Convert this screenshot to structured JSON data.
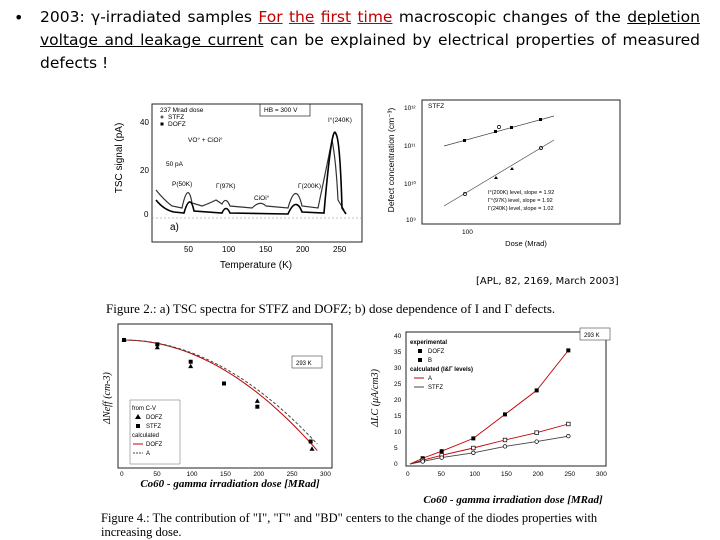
{
  "bullet": {
    "symbol": "•",
    "prefix": "2003: γ-irradiated samples",
    "red_words": [
      "For",
      "the",
      "first",
      "time"
    ],
    "after_red": "macroscopic changes of the",
    "underlined": "depletion voltage and leakage current",
    "rest": "can be explained by electrical properties of measured defects !"
  },
  "citation": "[APL, 82, 2169, March 2003]",
  "figure2_caption": "Figure 2.: a) TSC spectra for STFZ and DOFZ; b) dose dependence of I and Γ defects.",
  "figure4_caption": "Figure 4.: The contribution of \"I\", \"Γ\" and \"BD\" centers to the change of the diodes properties with increasing dose.",
  "tsc_plot": {
    "ylabel": "TSC signal (pA)",
    "xlabel": "Temperature (K)",
    "yticks": [
      "40",
      "20",
      "0"
    ],
    "xticks": [
      "50",
      "100",
      "150",
      "200",
      "250"
    ],
    "legend_title": "237 Mrad dose",
    "legend": [
      "STFZ",
      "DOFZ"
    ],
    "box_label": "HB = 300 V",
    "annotations": [
      "I°(240K)",
      "VO° + CiOi°",
      "50 pA",
      "P(50K)",
      "Γ(97K)",
      "CiOi°",
      "Γ(200K)"
    ],
    "panel": "a)"
  },
  "dose_plot": {
    "ylabel": "Defect concentration (cm⁻³)",
    "xlabel": "Dose (Mrad)",
    "yticks": [
      "10¹²",
      "10¹¹",
      "10¹⁰",
      "10⁹"
    ],
    "xticks": [
      "100"
    ],
    "panel_label": "STFZ",
    "legend": [
      "I°(200K) level, slope = 1.92",
      "Γ°(97K) level, slope = 1.92",
      "Γ(240K) level, slope = 1.02"
    ]
  },
  "chart_data": [
    {
      "type": "scatter",
      "title": "",
      "xlabel": "Co60 - gamma irradiation dose [MRad]",
      "ylabel": "ΔNeff (cm-3)",
      "xticks": [
        "0",
        "50",
        "100",
        "150",
        "200",
        "250",
        "300"
      ],
      "xlim": [
        0,
        300
      ],
      "box_label": "293 K",
      "legend": [
        "from C-V",
        "DOFZ",
        "STFZ",
        "calculated",
        "DOFZ",
        "A"
      ],
      "series": [
        {
          "name": "DOFZ",
          "x": [
            0,
            50,
            100,
            200,
            282
          ],
          "y": [
            0,
            -0.5,
            -1.8,
            -4.2,
            -7.5
          ]
        },
        {
          "name": "STFZ",
          "x": [
            0,
            50,
            100,
            150,
            200,
            280
          ],
          "y": [
            0,
            -0.3,
            -1.5,
            -3.0,
            -4.6,
            -7.0
          ]
        }
      ]
    },
    {
      "type": "scatter",
      "title": "",
      "xlabel": "Co60 - gamma irradiation dose [MRad]",
      "ylabel": "ΔLC (μA/cm3)",
      "xticks": [
        "0",
        "50",
        "100",
        "150",
        "200",
        "250",
        "300"
      ],
      "yticks": [
        "0",
        "5",
        "10",
        "15",
        "20",
        "25",
        "30",
        "35",
        "40"
      ],
      "xlim": [
        0,
        300
      ],
      "ylim": [
        0,
        40
      ],
      "box_label": "293 K",
      "legend": [
        "experimental",
        "DOFZ",
        "B",
        "calculated (I&Γ levels)",
        "A",
        "STFZ"
      ],
      "series": [
        {
          "name": "DOFZ",
          "x": [
            20,
            50,
            100,
            150,
            200,
            250
          ],
          "y": [
            1.8,
            4.0,
            8.0,
            15.5,
            23,
            35.5
          ]
        },
        {
          "name": "STFZ",
          "x": [
            20,
            50,
            100,
            150,
            200,
            250
          ],
          "y": [
            1.2,
            2.7,
            5.0,
            7.5,
            9.8,
            12.5
          ]
        },
        {
          "name": "A",
          "x": [
            20,
            50,
            100,
            150,
            200,
            250
          ],
          "y": [
            0.8,
            2.0,
            3.5,
            5.5,
            7.0,
            8.7
          ]
        }
      ]
    }
  ]
}
